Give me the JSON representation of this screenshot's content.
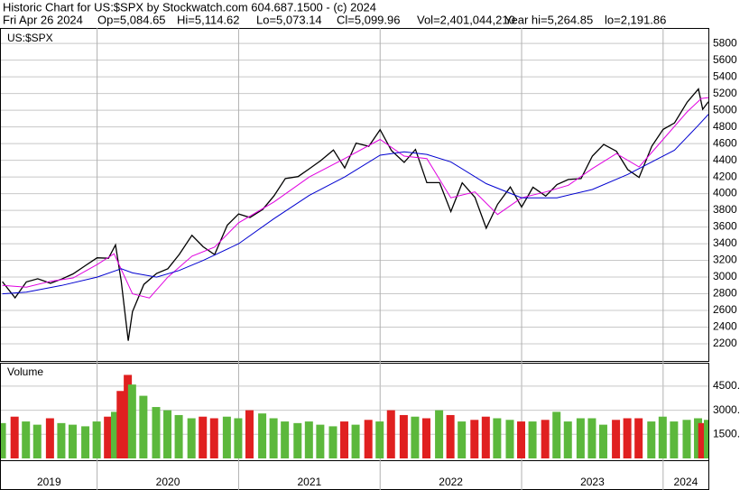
{
  "header": {
    "title": "Historic Chart for US:$SPX by Stockwatch.com 604.687.1500 - (c) 2024",
    "date": "Fri Apr 26 2024",
    "open": "Op=5,084.65",
    "high": "Hi=5,114.62",
    "low": "Lo=5,073.14",
    "close": "Cl=5,099.96",
    "volume": "Vol=2,401,044,210",
    "year_high": "Year hi=5,264.85",
    "year_low": "lo=2,191.86"
  },
  "chart_data": [
    {
      "type": "line",
      "title": "US:$SPX",
      "xlim": [
        2019.32,
        2024.32
      ],
      "xticks": [
        2019,
        2020,
        2021,
        2022,
        2023,
        2024
      ],
      "ylim": [
        1995,
        5985
      ],
      "yticks": [
        2200,
        2400,
        2600,
        2800,
        3000,
        3200,
        3400,
        3600,
        3800,
        4000,
        4200,
        4400,
        4600,
        4800,
        5000,
        5200,
        5400,
        5600,
        5800
      ],
      "grid": true,
      "series": [
        {
          "color": "#000000",
          "x": [
            2019.33,
            2019.42,
            2019.5,
            2019.58,
            2019.67,
            2019.75,
            2019.83,
            2019.92,
            2020.0,
            2020.08,
            2020.13,
            2020.17,
            2020.22,
            2020.25,
            2020.33,
            2020.42,
            2020.5,
            2020.58,
            2020.67,
            2020.75,
            2020.83,
            2020.92,
            2021.0,
            2021.08,
            2021.17,
            2021.25,
            2021.33,
            2021.42,
            2021.5,
            2021.58,
            2021.67,
            2021.75,
            2021.83,
            2021.92,
            2022.0,
            2022.08,
            2022.17,
            2022.25,
            2022.33,
            2022.42,
            2022.5,
            2022.58,
            2022.67,
            2022.75,
            2022.83,
            2022.92,
            2023.0,
            2023.08,
            2023.17,
            2023.25,
            2023.33,
            2023.42,
            2023.5,
            2023.58,
            2023.67,
            2023.75,
            2023.83,
            2023.92,
            2024.0,
            2024.08,
            2024.17,
            2024.25,
            2024.28,
            2024.32
          ],
          "values": [
            2945,
            2752,
            2942,
            2980,
            2926,
            2977,
            3038,
            3141,
            3231,
            3226,
            3386,
            2954,
            2237,
            2585,
            2912,
            3044,
            3100,
            3271,
            3500,
            3363,
            3270,
            3622,
            3756,
            3714,
            3811,
            3973,
            4181,
            4204,
            4298,
            4395,
            4523,
            4308,
            4605,
            4567,
            4766,
            4516,
            4374,
            4530,
            4132,
            4132,
            3785,
            4130,
            3955,
            3586,
            3872,
            4080,
            3840,
            4077,
            3970,
            4109,
            4169,
            4180,
            4450,
            4589,
            4508,
            4288,
            4194,
            4568,
            4770,
            4846,
            5096,
            5254,
            5011,
            5100
          ]
        },
        {
          "color": "#e000e0",
          "x": [
            2019.33,
            2019.5,
            2019.67,
            2019.83,
            2020.0,
            2020.12,
            2020.25,
            2020.37,
            2020.5,
            2020.67,
            2020.83,
            2021.0,
            2021.25,
            2021.5,
            2021.75,
            2022.0,
            2022.17,
            2022.33,
            2022.5,
            2022.67,
            2022.83,
            2023.0,
            2023.17,
            2023.33,
            2023.5,
            2023.67,
            2023.83,
            2024.0,
            2024.17,
            2024.27,
            2024.32
          ],
          "values": [
            2900,
            2880,
            2950,
            2990,
            3150,
            3280,
            2800,
            2750,
            3000,
            3250,
            3360,
            3650,
            3900,
            4200,
            4420,
            4650,
            4450,
            4420,
            3950,
            4020,
            3750,
            3950,
            4020,
            4100,
            4300,
            4480,
            4320,
            4650,
            4980,
            5140,
            5150
          ]
        },
        {
          "color": "#0000d0",
          "x": [
            2019.33,
            2019.5,
            2019.75,
            2020.0,
            2020.17,
            2020.25,
            2020.42,
            2020.58,
            2020.75,
            2021.0,
            2021.25,
            2021.5,
            2021.75,
            2022.0,
            2022.17,
            2022.33,
            2022.5,
            2022.75,
            2023.0,
            2023.25,
            2023.5,
            2023.75,
            2023.92,
            2024.08,
            2024.25,
            2024.32
          ],
          "values": [
            2800,
            2820,
            2900,
            3000,
            3100,
            3050,
            3000,
            3080,
            3200,
            3400,
            3700,
            3980,
            4200,
            4460,
            4500,
            4470,
            4380,
            4120,
            3950,
            3950,
            4050,
            4230,
            4380,
            4520,
            4820,
            4950
          ]
        }
      ]
    },
    {
      "type": "bar",
      "title": "Volume",
      "xlim": [
        2019.32,
        2024.32
      ],
      "ylim": [
        0,
        5900
      ],
      "yticks": [
        {
          "value": 1500,
          "label": "1500."
        },
        {
          "value": 3000,
          "label": "3000."
        },
        {
          "value": 4500,
          "label": "4500."
        }
      ],
      "up_color": "#5cb83c",
      "down_color": "#e02020",
      "x": [
        2019.33,
        2019.42,
        2019.5,
        2019.58,
        2019.67,
        2019.75,
        2019.83,
        2019.92,
        2020.0,
        2020.08,
        2020.13,
        2020.17,
        2020.22,
        2020.25,
        2020.33,
        2020.42,
        2020.5,
        2020.58,
        2020.67,
        2020.75,
        2020.83,
        2020.92,
        2021.0,
        2021.08,
        2021.17,
        2021.25,
        2021.33,
        2021.42,
        2021.5,
        2021.58,
        2021.67,
        2021.75,
        2021.83,
        2021.92,
        2022.0,
        2022.08,
        2022.17,
        2022.25,
        2022.33,
        2022.42,
        2022.5,
        2022.58,
        2022.67,
        2022.75,
        2022.83,
        2022.92,
        2023.0,
        2023.08,
        2023.17,
        2023.25,
        2023.33,
        2023.42,
        2023.5,
        2023.58,
        2023.67,
        2023.75,
        2023.83,
        2023.92,
        2024.0,
        2024.08,
        2024.17,
        2024.25,
        2024.28,
        2024.32
      ],
      "values": [
        2200,
        2600,
        2300,
        2100,
        2500,
        2200,
        2100,
        2000,
        2300,
        2600,
        2900,
        4200,
        5200,
        4600,
        3900,
        3200,
        3000,
        2700,
        2500,
        2600,
        2500,
        2600,
        2500,
        3000,
        2800,
        2500,
        2300,
        2200,
        2300,
        2100,
        2000,
        2300,
        2100,
        2400,
        2300,
        3000,
        2700,
        2600,
        2500,
        3000,
        2700,
        2300,
        2400,
        2600,
        2500,
        2400,
        2300,
        2300,
        2400,
        2900,
        2300,
        2500,
        2500,
        2100,
        2400,
        2500,
        2500,
        2300,
        2600,
        2300,
        2400,
        2500,
        2200,
        2401
      ]
    }
  ]
}
